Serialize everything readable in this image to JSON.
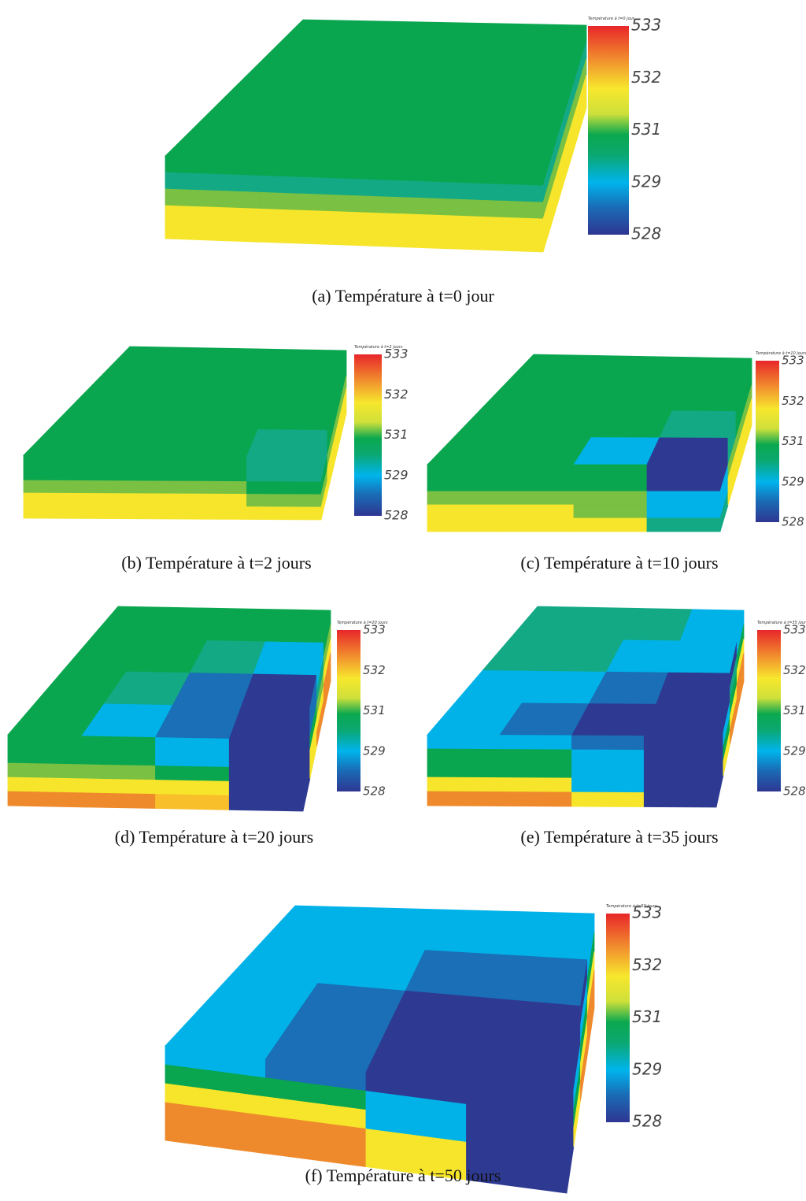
{
  "panels": [
    {
      "caption": "(a) Température à t=0 jour",
      "colorbar": {
        "title": "Température à t=0 jour",
        "ticks": [
          533,
          532,
          531,
          529,
          528
        ]
      }
    },
    {
      "caption": "(b) Température à t=2 jours",
      "colorbar": {
        "title": "Température à t=2 jours",
        "ticks": [
          533,
          532,
          531,
          529,
          528
        ]
      }
    },
    {
      "caption": "(c) Température à t=10 jours",
      "colorbar": {
        "title": "Température à t=10 jours",
        "ticks": [
          533,
          532,
          531,
          529,
          528
        ]
      }
    },
    {
      "caption": "(d) Température à t=20 jours",
      "colorbar": {
        "title": "Température à t=20 jours",
        "ticks": [
          533,
          532,
          531,
          529,
          528
        ]
      }
    },
    {
      "caption": "(e) Température à t=35 jours",
      "colorbar": {
        "title": "Température à t=35 jours",
        "ticks": [
          533,
          532,
          531,
          529,
          528
        ]
      }
    },
    {
      "caption": "(f) Température à t=50 jours",
      "colorbar": {
        "title": "Température à t=50 jours",
        "ticks": [
          533,
          532,
          531,
          529,
          528
        ]
      }
    }
  ]
}
